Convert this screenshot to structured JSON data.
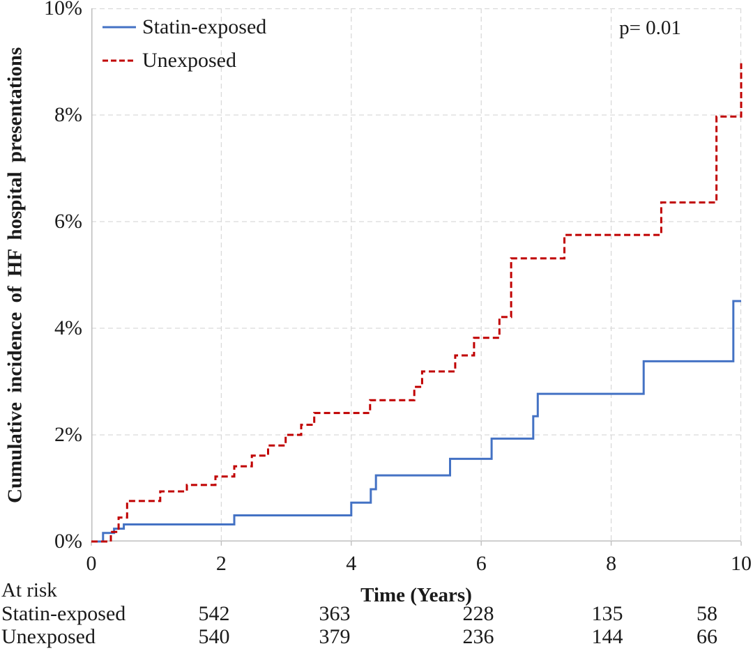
{
  "chart_data": {
    "type": "line",
    "subtype": "cumulative-incidence-step",
    "title": "",
    "ylabel": "Cumulative incidence of HF hospital presentations",
    "xlabel": "Time (Years)",
    "annotation": "p= 0.01",
    "xlim": [
      0,
      10
    ],
    "ylim_percent": [
      0,
      10
    ],
    "x_ticks": [
      0,
      2,
      4,
      6,
      8,
      10
    ],
    "y_tick_labels": [
      "0%",
      "2%",
      "4%",
      "6%",
      "8%",
      "10%"
    ],
    "y_tick_percents": [
      0,
      2,
      4,
      6,
      8,
      10
    ],
    "grid": "dashed-both-axes",
    "legend_position": "top-left-inside",
    "colors": {
      "statin_exposed": "#4472C4",
      "unexposed": "#C00000",
      "gridline": "#d9d9d9",
      "axis": "#bfbfbf",
      "text": "#1a1a1a"
    },
    "series": [
      {
        "name": "Statin-exposed",
        "color": "#4472C4",
        "line_style": "solid",
        "points": [
          [
            0,
            0
          ],
          [
            0.18,
            0.16
          ],
          [
            0.35,
            0.24
          ],
          [
            0.5,
            0.32
          ],
          [
            2.2,
            0.49
          ],
          [
            4.0,
            0.73
          ],
          [
            4.3,
            0.98
          ],
          [
            4.38,
            1.24
          ],
          [
            5.52,
            1.55
          ],
          [
            6.16,
            1.93
          ],
          [
            6.8,
            2.35
          ],
          [
            6.87,
            2.77
          ],
          [
            8.5,
            3.38
          ],
          [
            9.88,
            4.51
          ],
          [
            10,
            4.51
          ]
        ]
      },
      {
        "name": "Unexposed",
        "color": "#C00000",
        "line_style": "dashed",
        "points": [
          [
            0,
            0
          ],
          [
            0.3,
            0.18
          ],
          [
            0.42,
            0.45
          ],
          [
            0.55,
            0.76
          ],
          [
            1.06,
            0.94
          ],
          [
            1.47,
            1.06
          ],
          [
            1.91,
            1.22
          ],
          [
            2.2,
            1.41
          ],
          [
            2.47,
            1.61
          ],
          [
            2.72,
            1.8
          ],
          [
            2.99,
            2.0
          ],
          [
            3.23,
            2.19
          ],
          [
            3.43,
            2.41
          ],
          [
            4.29,
            2.65
          ],
          [
            4.97,
            2.9
          ],
          [
            5.09,
            3.19
          ],
          [
            5.6,
            3.49
          ],
          [
            5.89,
            3.82
          ],
          [
            6.28,
            4.21
          ],
          [
            6.46,
            5.31
          ],
          [
            7.28,
            5.75
          ],
          [
            8.77,
            6.36
          ],
          [
            9.62,
            7.97
          ],
          [
            10,
            8.97
          ]
        ]
      }
    ],
    "at_risk": {
      "label": "At risk",
      "times": [
        2,
        4,
        6,
        8,
        10
      ],
      "rows": [
        {
          "name": "Statin-exposed",
          "counts": [
            542,
            363,
            228,
            135,
            58
          ]
        },
        {
          "name": "Unexposed",
          "counts": [
            540,
            379,
            236,
            144,
            66
          ]
        }
      ]
    }
  }
}
